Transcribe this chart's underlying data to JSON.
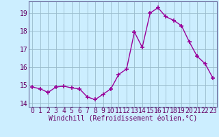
{
  "x": [
    0,
    1,
    2,
    3,
    4,
    5,
    6,
    7,
    8,
    9,
    10,
    11,
    12,
    13,
    14,
    15,
    16,
    17,
    18,
    19,
    20,
    21,
    22,
    23
  ],
  "y": [
    14.9,
    14.8,
    14.6,
    14.9,
    14.95,
    14.85,
    14.8,
    14.35,
    14.2,
    14.5,
    14.8,
    15.6,
    15.9,
    17.95,
    17.1,
    19.0,
    19.3,
    18.8,
    18.6,
    18.3,
    17.4,
    16.6,
    16.2,
    15.4
  ],
  "line_color": "#990099",
  "marker": "+",
  "markersize": 4,
  "linewidth": 1.0,
  "bg_color": "#cceeff",
  "grid_color": "#99bbcc",
  "xlabel": "Windchill (Refroidissement éolien,°C)",
  "xlabel_fontsize": 7,
  "ylabel_ticks": [
    14,
    15,
    16,
    17,
    18,
    19
  ],
  "xlim": [
    -0.5,
    23.5
  ],
  "ylim": [
    13.8,
    19.65
  ],
  "tick_fontsize": 7,
  "spine_color": "#666699"
}
